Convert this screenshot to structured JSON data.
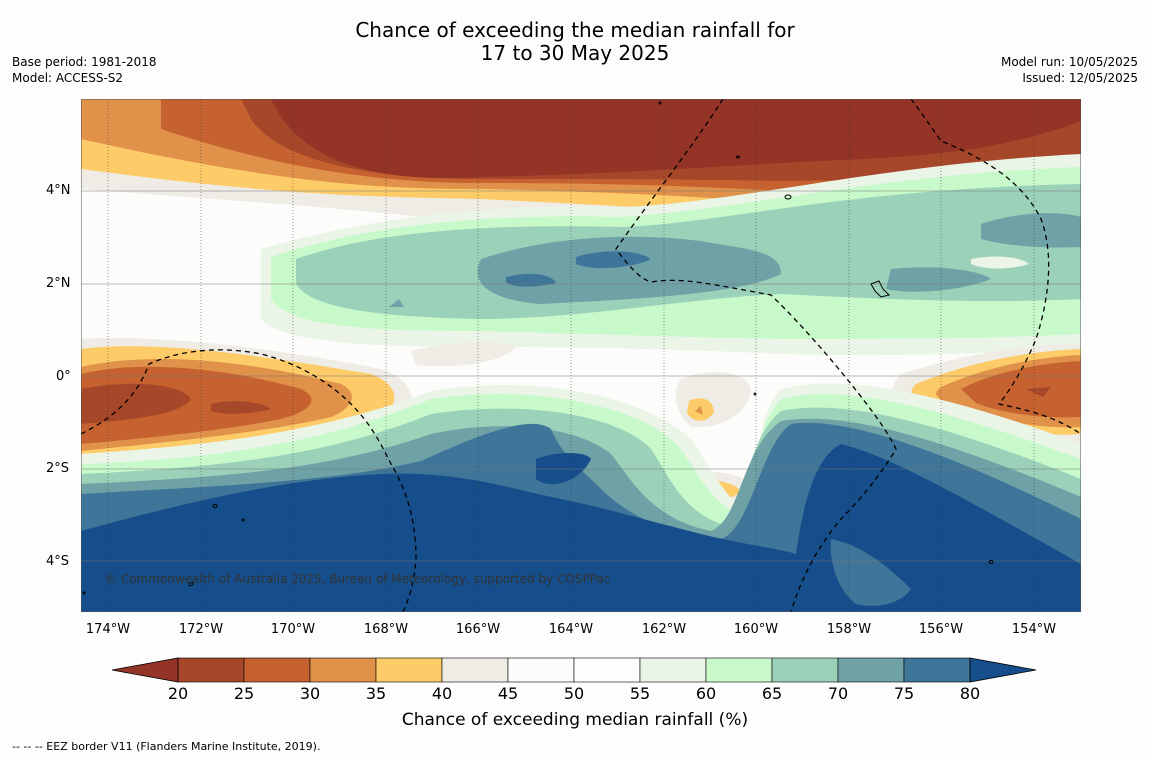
{
  "title": {
    "line1": "Chance of exceeding the median rainfall for",
    "line2": "17 to 30 May 2025"
  },
  "meta_left": {
    "base_period": "Base period: 1981-2018",
    "model": "Model: ACCESS-S2"
  },
  "meta_right": {
    "model_run": "Model run: 10/05/2025",
    "issued": "Issued: 12/05/2025"
  },
  "copyright": "© Commonwealth of Australia 2025, Bureau of Meteorology, supported by COSPPac",
  "lat_labels": [
    "4°N",
    "2°N",
    "0°",
    "2°S",
    "4°S"
  ],
  "lon_labels": [
    "174°W",
    "172°W",
    "170°W",
    "168°W",
    "166°W",
    "164°W",
    "162°W",
    "160°W",
    "158°W",
    "156°W",
    "154°W"
  ],
  "colorbar": {
    "ticks": [
      "20",
      "25",
      "30",
      "35",
      "40",
      "45",
      "50",
      "55",
      "60",
      "65",
      "70",
      "75",
      "80"
    ],
    "colors": [
      "#a6472a",
      "#c6622f",
      "#e0914a",
      "#fdcb68",
      "#efece6",
      "#fcfcfb",
      "#fdfdfc",
      "#eaf5e8",
      "#c8f9cb",
      "#9bd1b9",
      "#6ea2a6",
      "#3f7599"
    ],
    "under_color": "#943426",
    "over_color": "#154e8a",
    "label": "Chance of exceeding median rainfall (%)"
  },
  "footnote": "--  --  -- EEZ border V11 (Flanders Marine Institute, 2019)."
}
